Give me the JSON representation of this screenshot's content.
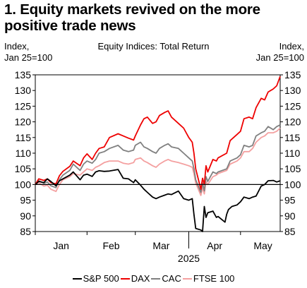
{
  "chart_data": {
    "type": "line",
    "title": "1. Equity markets revived on the more positive trade news",
    "subtitle": "Equity Indices: Total Return",
    "ylabel_left": [
      "Index,",
      "Jan 25=100"
    ],
    "ylabel_right": [
      "Index,",
      "Jan 25=100"
    ],
    "ylim": [
      85,
      135
    ],
    "yticks": [
      85,
      90,
      95,
      100,
      105,
      110,
      115,
      120,
      125,
      130,
      135
    ],
    "xlim": [
      "2025-01-01",
      "2025-05-23"
    ],
    "x_tick_dates": [
      "2025-01-01",
      "2025-01-31",
      "2025-02-28",
      "2025-03-31",
      "2025-04-30"
    ],
    "x_month_labels": [
      {
        "label": "Jan",
        "date": "2025-01-16"
      },
      {
        "label": "Feb",
        "date": "2025-02-14"
      },
      {
        "label": "Mar",
        "date": "2025-03-15"
      },
      {
        "label": "Apr",
        "date": "2025-04-15"
      },
      {
        "label": "May",
        "date": "2025-05-13"
      }
    ],
    "x_year_label": {
      "label": "2025",
      "date": "2025-03-31"
    },
    "reference_line": 100,
    "grid": false,
    "legend_position": "bottom",
    "series": [
      {
        "name": "S&P 500",
        "color": "#000000",
        "points": [
          [
            "2025-01-01",
            100.0
          ],
          [
            "2025-01-03",
            101.0
          ],
          [
            "2025-01-06",
            100.6
          ],
          [
            "2025-01-08",
            101.8
          ],
          [
            "2025-01-10",
            101.0
          ],
          [
            "2025-01-13",
            99.6
          ],
          [
            "2025-01-15",
            101.2
          ],
          [
            "2025-01-17",
            101.8
          ],
          [
            "2025-01-21",
            103.0
          ],
          [
            "2025-01-23",
            104.0
          ],
          [
            "2025-01-27",
            101.5
          ],
          [
            "2025-01-29",
            103.0
          ],
          [
            "2025-01-31",
            103.3
          ],
          [
            "2025-02-03",
            102.6
          ],
          [
            "2025-02-05",
            104.0
          ],
          [
            "2025-02-07",
            104.4
          ],
          [
            "2025-02-10",
            104.2
          ],
          [
            "2025-02-13",
            104.3
          ],
          [
            "2025-02-18",
            104.8
          ],
          [
            "2025-02-21",
            102.0
          ],
          [
            "2025-02-24",
            101.8
          ],
          [
            "2025-02-27",
            100.6
          ],
          [
            "2025-02-28",
            101.5
          ],
          [
            "2025-03-03",
            99.8
          ],
          [
            "2025-03-05",
            98.5
          ],
          [
            "2025-03-07",
            97.5
          ],
          [
            "2025-03-10",
            96.0
          ],
          [
            "2025-03-12",
            95.5
          ],
          [
            "2025-03-14",
            96.0
          ],
          [
            "2025-03-17",
            96.6
          ],
          [
            "2025-03-19",
            97.0
          ],
          [
            "2025-03-21",
            96.8
          ],
          [
            "2025-03-25",
            97.9
          ],
          [
            "2025-03-28",
            95.5
          ],
          [
            "2025-03-31",
            95.0
          ],
          [
            "2025-04-02",
            95.5
          ],
          [
            "2025-04-03",
            90.5
          ],
          [
            "2025-04-04",
            86.0
          ],
          [
            "2025-04-07",
            85.5
          ],
          [
            "2025-04-08",
            85.0
          ],
          [
            "2025-04-09",
            93.0
          ],
          [
            "2025-04-10",
            89.5
          ],
          [
            "2025-04-11",
            91.0
          ],
          [
            "2025-04-14",
            91.5
          ],
          [
            "2025-04-16",
            89.5
          ],
          [
            "2025-04-17",
            89.8
          ],
          [
            "2025-04-21",
            88.0
          ],
          [
            "2025-04-22",
            90.5
          ],
          [
            "2025-04-23",
            92.0
          ],
          [
            "2025-04-25",
            93.0
          ],
          [
            "2025-04-28",
            93.5
          ],
          [
            "2025-04-30",
            94.5
          ],
          [
            "2025-05-02",
            96.0
          ],
          [
            "2025-05-05",
            95.5
          ],
          [
            "2025-05-07",
            96.0
          ],
          [
            "2025-05-09",
            96.3
          ],
          [
            "2025-05-12",
            99.5
          ],
          [
            "2025-05-14",
            100.0
          ],
          [
            "2025-05-16",
            101.2
          ],
          [
            "2025-05-19",
            101.3
          ],
          [
            "2025-05-21",
            100.8
          ],
          [
            "2025-05-23",
            101.2
          ]
        ]
      },
      {
        "name": "DAX",
        "color": "#ee0000",
        "points": [
          [
            "2025-01-01",
            100.0
          ],
          [
            "2025-01-03",
            101.8
          ],
          [
            "2025-01-06",
            101.3
          ],
          [
            "2025-01-08",
            101.8
          ],
          [
            "2025-01-10",
            100.6
          ],
          [
            "2025-01-13",
            100.2
          ],
          [
            "2025-01-15",
            102.8
          ],
          [
            "2025-01-17",
            104.2
          ],
          [
            "2025-01-21",
            105.8
          ],
          [
            "2025-01-23",
            107.5
          ],
          [
            "2025-01-27",
            106.0
          ],
          [
            "2025-01-29",
            108.5
          ],
          [
            "2025-01-31",
            109.8
          ],
          [
            "2025-02-03",
            108.0
          ],
          [
            "2025-02-05",
            110.0
          ],
          [
            "2025-02-07",
            111.5
          ],
          [
            "2025-02-10",
            112.0
          ],
          [
            "2025-02-13",
            115.0
          ],
          [
            "2025-02-18",
            116.2
          ],
          [
            "2025-02-21",
            115.5
          ],
          [
            "2025-02-24",
            114.8
          ],
          [
            "2025-02-27",
            114.2
          ],
          [
            "2025-02-28",
            115.5
          ],
          [
            "2025-03-03",
            119.0
          ],
          [
            "2025-03-05",
            121.0
          ],
          [
            "2025-03-07",
            121.5
          ],
          [
            "2025-03-10",
            119.5
          ],
          [
            "2025-03-12",
            120.0
          ],
          [
            "2025-03-14",
            122.0
          ],
          [
            "2025-03-17",
            123.0
          ],
          [
            "2025-03-19",
            123.5
          ],
          [
            "2025-03-21",
            121.5
          ],
          [
            "2025-03-25",
            119.5
          ],
          [
            "2025-03-28",
            118.0
          ],
          [
            "2025-03-31",
            115.0
          ],
          [
            "2025-04-02",
            113.5
          ],
          [
            "2025-04-03",
            110.0
          ],
          [
            "2025-04-04",
            105.0
          ],
          [
            "2025-04-07",
            98.5
          ],
          [
            "2025-04-08",
            102.0
          ],
          [
            "2025-04-09",
            100.0
          ],
          [
            "2025-04-10",
            106.0
          ],
          [
            "2025-04-11",
            104.0
          ],
          [
            "2025-04-14",
            108.0
          ],
          [
            "2025-04-16",
            107.5
          ],
          [
            "2025-04-17",
            108.5
          ],
          [
            "2025-04-22",
            110.0
          ],
          [
            "2025-04-24",
            114.0
          ],
          [
            "2025-04-28",
            116.0
          ],
          [
            "2025-04-30",
            117.0
          ],
          [
            "2025-05-02",
            121.0
          ],
          [
            "2025-05-05",
            121.5
          ],
          [
            "2025-05-07",
            121.0
          ],
          [
            "2025-05-09",
            124.5
          ],
          [
            "2025-05-12",
            127.5
          ],
          [
            "2025-05-14",
            127.0
          ],
          [
            "2025-05-16",
            129.5
          ],
          [
            "2025-05-19",
            130.5
          ],
          [
            "2025-05-21",
            131.5
          ],
          [
            "2025-05-23",
            134.5
          ]
        ]
      },
      {
        "name": "CAC",
        "color": "#808080",
        "points": [
          [
            "2025-01-01",
            100.0
          ],
          [
            "2025-01-03",
            101.2
          ],
          [
            "2025-01-06",
            100.4
          ],
          [
            "2025-01-08",
            100.8
          ],
          [
            "2025-01-10",
            99.6
          ],
          [
            "2025-01-13",
            99.0
          ],
          [
            "2025-01-15",
            101.5
          ],
          [
            "2025-01-17",
            103.0
          ],
          [
            "2025-01-21",
            104.5
          ],
          [
            "2025-01-23",
            106.5
          ],
          [
            "2025-01-27",
            104.5
          ],
          [
            "2025-01-29",
            106.5
          ],
          [
            "2025-01-31",
            107.5
          ],
          [
            "2025-02-03",
            106.8
          ],
          [
            "2025-02-05",
            108.0
          ],
          [
            "2025-02-07",
            110.0
          ],
          [
            "2025-02-10",
            110.5
          ],
          [
            "2025-02-13",
            111.5
          ],
          [
            "2025-02-18",
            112.5
          ],
          [
            "2025-02-21",
            111.0
          ],
          [
            "2025-02-24",
            110.5
          ],
          [
            "2025-02-27",
            111.0
          ],
          [
            "2025-02-28",
            112.5
          ],
          [
            "2025-03-03",
            113.5
          ],
          [
            "2025-03-05",
            112.0
          ],
          [
            "2025-03-07",
            111.5
          ],
          [
            "2025-03-10",
            110.5
          ],
          [
            "2025-03-12",
            110.0
          ],
          [
            "2025-03-14",
            111.5
          ],
          [
            "2025-03-17",
            112.5
          ],
          [
            "2025-03-19",
            113.0
          ],
          [
            "2025-03-21",
            112.0
          ],
          [
            "2025-03-25",
            111.5
          ],
          [
            "2025-03-28",
            110.0
          ],
          [
            "2025-03-31",
            108.5
          ],
          [
            "2025-04-02",
            107.5
          ],
          [
            "2025-04-03",
            105.0
          ],
          [
            "2025-04-04",
            101.5
          ],
          [
            "2025-04-07",
            97.5
          ],
          [
            "2025-04-08",
            100.5
          ],
          [
            "2025-04-09",
            98.0
          ],
          [
            "2025-04-10",
            102.5
          ],
          [
            "2025-04-11",
            101.0
          ],
          [
            "2025-04-14",
            104.0
          ],
          [
            "2025-04-16",
            103.5
          ],
          [
            "2025-04-17",
            104.0
          ],
          [
            "2025-04-22",
            105.0
          ],
          [
            "2025-04-24",
            107.5
          ],
          [
            "2025-04-28",
            108.5
          ],
          [
            "2025-04-30",
            109.5
          ],
          [
            "2025-05-02",
            112.5
          ],
          [
            "2025-05-05",
            112.0
          ],
          [
            "2025-05-07",
            112.5
          ],
          [
            "2025-05-09",
            115.5
          ],
          [
            "2025-05-12",
            116.5
          ],
          [
            "2025-05-14",
            117.0
          ],
          [
            "2025-05-16",
            118.5
          ],
          [
            "2025-05-19",
            117.5
          ],
          [
            "2025-05-21",
            118.5
          ],
          [
            "2025-05-23",
            119.0
          ]
        ]
      },
      {
        "name": "FTSE 100",
        "color": "#f4a0a0",
        "points": [
          [
            "2025-01-01",
            100.0
          ],
          [
            "2025-01-03",
            100.6
          ],
          [
            "2025-01-06",
            99.5
          ],
          [
            "2025-01-08",
            99.8
          ],
          [
            "2025-01-10",
            98.5
          ],
          [
            "2025-01-13",
            97.8
          ],
          [
            "2025-01-15",
            100.0
          ],
          [
            "2025-01-17",
            101.5
          ],
          [
            "2025-01-21",
            102.5
          ],
          [
            "2025-01-23",
            103.5
          ],
          [
            "2025-01-27",
            103.0
          ],
          [
            "2025-01-29",
            104.0
          ],
          [
            "2025-01-31",
            105.0
          ],
          [
            "2025-02-03",
            104.5
          ],
          [
            "2025-02-05",
            105.5
          ],
          [
            "2025-02-07",
            106.0
          ],
          [
            "2025-02-10",
            107.0
          ],
          [
            "2025-02-13",
            107.5
          ],
          [
            "2025-02-18",
            107.5
          ],
          [
            "2025-02-21",
            106.8
          ],
          [
            "2025-02-24",
            106.5
          ],
          [
            "2025-02-27",
            107.0
          ],
          [
            "2025-02-28",
            108.0
          ],
          [
            "2025-03-03",
            108.5
          ],
          [
            "2025-03-05",
            107.5
          ],
          [
            "2025-03-07",
            107.0
          ],
          [
            "2025-03-10",
            106.0
          ],
          [
            "2025-03-12",
            105.5
          ],
          [
            "2025-03-14",
            106.5
          ],
          [
            "2025-03-17",
            107.5
          ],
          [
            "2025-03-19",
            108.0
          ],
          [
            "2025-03-21",
            107.5
          ],
          [
            "2025-03-25",
            107.0
          ],
          [
            "2025-03-28",
            106.5
          ],
          [
            "2025-03-31",
            106.0
          ],
          [
            "2025-04-02",
            105.5
          ],
          [
            "2025-04-03",
            103.5
          ],
          [
            "2025-04-04",
            100.5
          ],
          [
            "2025-04-07",
            96.5
          ],
          [
            "2025-04-08",
            99.0
          ],
          [
            "2025-04-09",
            97.0
          ],
          [
            "2025-04-10",
            101.0
          ],
          [
            "2025-04-11",
            100.0
          ],
          [
            "2025-04-14",
            102.5
          ],
          [
            "2025-04-16",
            103.0
          ],
          [
            "2025-04-17",
            103.5
          ],
          [
            "2025-04-22",
            104.5
          ],
          [
            "2025-04-24",
            106.5
          ],
          [
            "2025-04-28",
            107.5
          ],
          [
            "2025-04-30",
            108.5
          ],
          [
            "2025-05-02",
            110.5
          ],
          [
            "2025-05-05",
            110.5
          ],
          [
            "2025-05-07",
            111.5
          ],
          [
            "2025-05-09",
            113.5
          ],
          [
            "2025-05-12",
            115.0
          ],
          [
            "2025-05-14",
            115.5
          ],
          [
            "2025-05-16",
            116.5
          ],
          [
            "2025-05-19",
            116.5
          ],
          [
            "2025-05-21",
            117.0
          ],
          [
            "2025-05-23",
            118.0
          ]
        ]
      }
    ]
  }
}
